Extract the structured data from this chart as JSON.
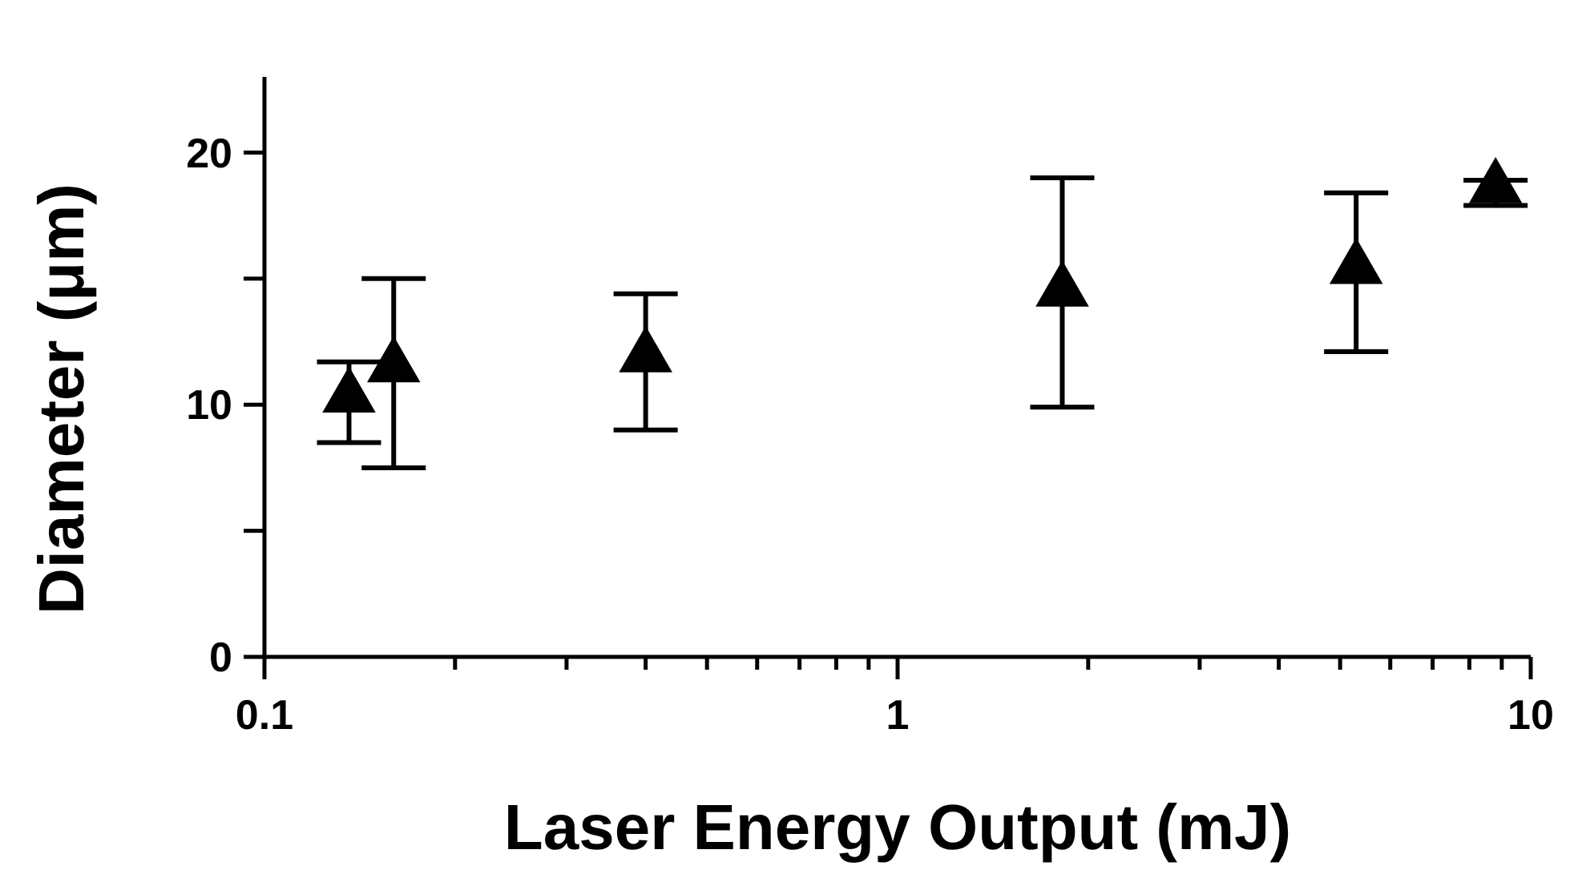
{
  "chart_data": {
    "type": "scatter",
    "xlabel": "Laser Energy Output (mJ)",
    "ylabel": "Diameter (μm)",
    "log": "x",
    "marker": "triangle",
    "grid": false,
    "x": [
      0.136,
      0.16,
      0.4,
      1.82,
      5.3,
      8.8
    ],
    "series": [
      {
        "color": "#000000",
        "values": [
          10.3,
          11.5,
          11.9,
          14.5,
          15.4,
          18.6
        ],
        "errors": [
          [
            8.5,
            11.7
          ],
          [
            7.5,
            15.0
          ],
          [
            9.0,
            14.4
          ],
          [
            9.9,
            19.0
          ],
          [
            12.1,
            18.4
          ],
          [
            17.9,
            18.9
          ]
        ]
      }
    ],
    "xlim": [
      0.1,
      10
    ],
    "ylim": [
      0,
      23
    ],
    "xticks": [
      0.1,
      {
        "value": 0.2,
        "label": null
      },
      {
        "value": 0.3,
        "label": null
      },
      {
        "value": 0.4,
        "label": null
      },
      {
        "value": 0.5,
        "label": null
      },
      {
        "value": 0.6,
        "label": null
      },
      {
        "value": 0.7,
        "label": null
      },
      {
        "value": 0.8,
        "label": null
      },
      {
        "value": 0.9,
        "label": null
      },
      1,
      {
        "value": 2,
        "label": null
      },
      {
        "value": 3,
        "label": null
      },
      {
        "value": 4,
        "label": null
      },
      {
        "value": 5,
        "label": null
      },
      {
        "value": 6,
        "label": null
      },
      {
        "value": 7,
        "label": null
      },
      {
        "value": 8,
        "label": null
      },
      {
        "value": 9,
        "label": null
      },
      10
    ],
    "yticks": [
      0,
      {
        "value": 5,
        "label": null
      },
      10,
      {
        "value": 15,
        "label": null
      },
      20
    ]
  }
}
